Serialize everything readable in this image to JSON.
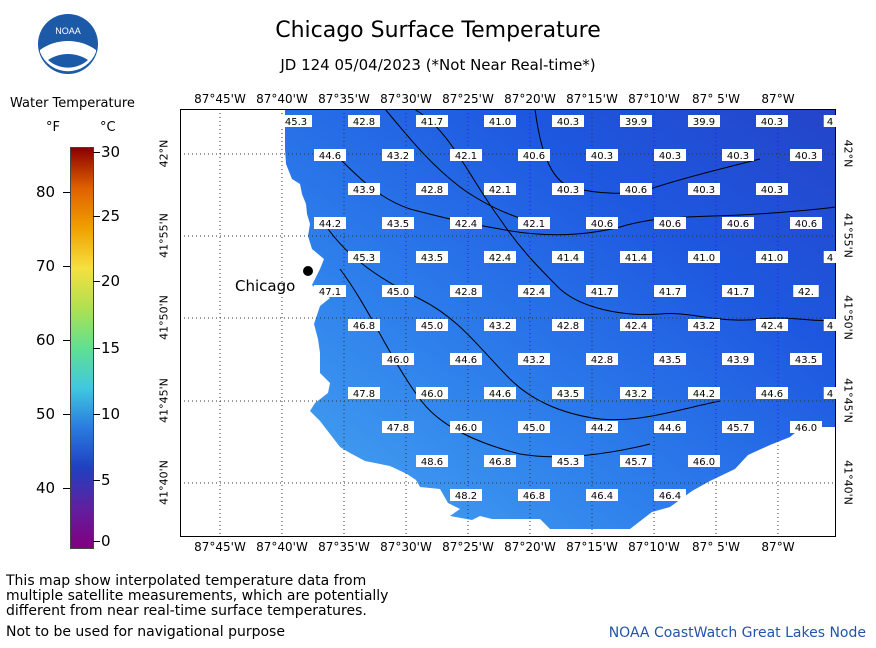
{
  "header": {
    "title": "Chicago Surface Temperature",
    "subtitle": "JD 124 05/04/2023 (*Not Near Real-time*)"
  },
  "logo": {
    "text": "NOAA"
  },
  "legend": {
    "title": "Water Temperature",
    "unit_f": "°F",
    "unit_c": "°C",
    "f_ticks": [
      "80",
      "70",
      "60",
      "50",
      "40"
    ],
    "c_ticks": [
      "30",
      "25",
      "20",
      "15",
      "10",
      "5",
      "0"
    ],
    "colors": [
      "#8a0000",
      "#e06000",
      "#f0a000",
      "#f5e040",
      "#b0e050",
      "#60e090",
      "#40c8e0",
      "#2a7ae0",
      "#2040c0",
      "#6020a0",
      "#800080"
    ]
  },
  "map": {
    "lon_labels": [
      "87°45'W",
      "87°40'W",
      "87°35'W",
      "87°30'W",
      "87°25'W",
      "87°20'W",
      "87°15'W",
      "87°10'W",
      "87° 5'W",
      "87°W"
    ],
    "lat_labels": [
      "42°N",
      "41°55'N",
      "41°50'N",
      "41°45'N",
      "41°40'N"
    ],
    "city": "Chicago",
    "temps": [
      [
        "45.3",
        "42.8",
        "41.7",
        "41.0",
        "40.3",
        "39.9",
        "39.9",
        "40.3",
        "4"
      ],
      [
        "44.6",
        "43.2",
        "42.1",
        "40.6",
        "40.3",
        "40.3",
        "40.3",
        "40.3"
      ],
      [
        "43.9",
        "42.8",
        "42.1",
        "40.3",
        "40.6",
        "40.3",
        "40.3"
      ],
      [
        "44.2",
        "43.5",
        "42.4",
        "42.1",
        "40.6",
        "40.6",
        "40.6",
        "40.6"
      ],
      [
        "45.3",
        "43.5",
        "42.4",
        "41.4",
        "41.4",
        "41.0",
        "41.0",
        "4"
      ],
      [
        "47.1",
        "45.0",
        "42.8",
        "42.4",
        "41.7",
        "41.7",
        "41.7",
        "42."
      ],
      [
        "46.8",
        "45.0",
        "43.2",
        "42.8",
        "42.4",
        "43.2",
        "42.4",
        "4"
      ],
      [
        "46.0",
        "44.6",
        "43.2",
        "42.8",
        "43.5",
        "43.9",
        "43.5"
      ],
      [
        "47.8",
        "46.0",
        "44.6",
        "43.5",
        "43.2",
        "44.2",
        "44.6",
        "4"
      ],
      [
        "47.8",
        "46.0",
        "45.0",
        "44.2",
        "44.6",
        "45.7",
        "46.0"
      ],
      [
        "48.6",
        "46.8",
        "45.3",
        "45.7",
        "46.0"
      ],
      [
        "48.2",
        "46.8",
        "46.4",
        "46.4"
      ]
    ]
  },
  "footer": {
    "note1": "This map show interpolated temperature data from",
    "note2": "multiple satellite measurements, which are potentially",
    "note3": "different from near real-time surface temperatures.",
    "note4": "Not to be used for navigational purpose",
    "credit": "NOAA CoastWatch Great Lakes Node"
  }
}
